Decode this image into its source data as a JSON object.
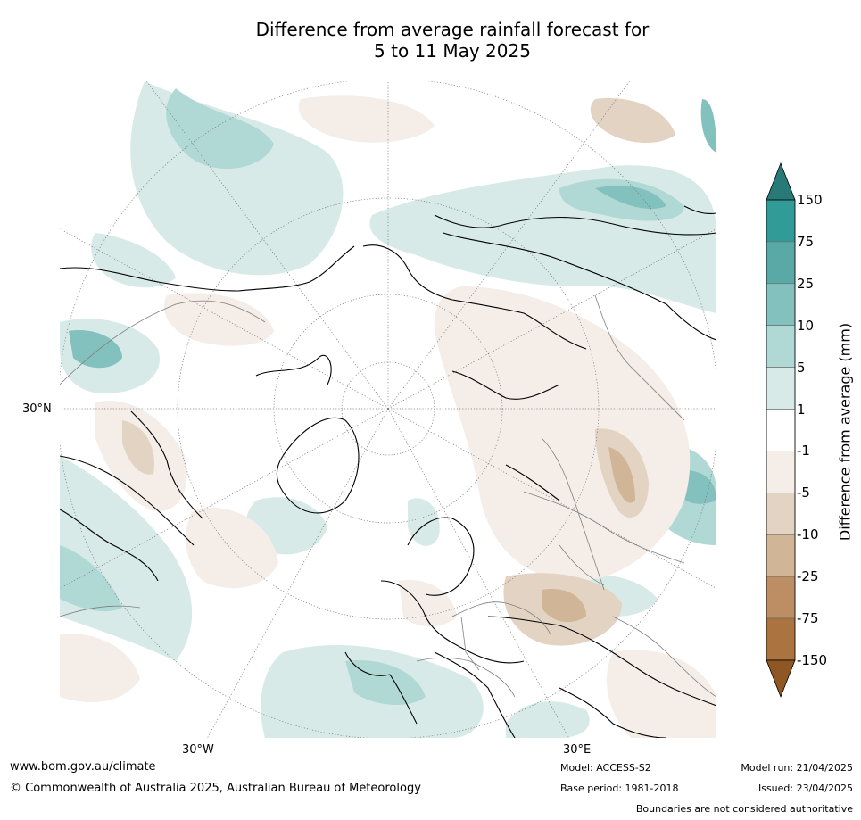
{
  "title": {
    "line1": "Difference from average rainfall forecast for",
    "line2": "5 to 11 May 2025"
  },
  "map": {
    "projection": "north polar stereographic",
    "labels": {
      "lat_30n": "30°N",
      "lon_30w": "30°W",
      "lon_30e": "30°E"
    }
  },
  "colorbar": {
    "title": "Difference from average (mm)",
    "tick_labels": [
      "150",
      "75",
      "25",
      "10",
      "5",
      "1",
      "-1",
      "-5",
      "-10",
      "-25",
      "-75",
      "-150"
    ],
    "colors": {
      "over": "#277a78",
      "bins": [
        "#319b97",
        "#59aaa7",
        "#82c1be",
        "#b0d9d6",
        "#d7eae8",
        "#ffffff",
        "#f4ede8",
        "#e3d3c3",
        "#d1b597",
        "#bd8e63",
        "#aa7340"
      ],
      "under": "#8f5723"
    }
  },
  "footer": {
    "url": "www.bom.gov.au/climate",
    "copyright": "© Commonwealth of Australia 2025, Australian Bureau of Meteorology",
    "model": "Model: ACCESS-S2",
    "base_period": "Base period: 1981-2018",
    "model_run": "Model run: 21/04/2025",
    "issued": "Issued: 23/04/2025",
    "disclaimer": "Boundaries are not considered authoritative"
  }
}
